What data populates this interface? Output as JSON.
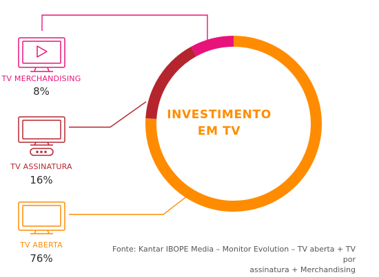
{
  "chart_data": {
    "type": "pie",
    "variant": "donut",
    "center_title": [
      "INVESTIMENTO",
      "EM TV"
    ],
    "slices": [
      {
        "label": "TV ABERTA",
        "value_text": "76%",
        "value": 76,
        "color": "#FF8C00"
      },
      {
        "label": "TV ASSINATURA",
        "value_text": "16%",
        "value": 16,
        "color": "#B5252E"
      },
      {
        "label": "TV MERCHANDISING",
        "value_text": "8%",
        "value": 8,
        "color": "#E8137A"
      }
    ],
    "source": [
      "Fonte: Kantar IBOPE Media – Monitor Evolution – TV aberta + TV por",
      "assinatura + Merchandising"
    ]
  },
  "center_color": "#FF8C00",
  "icons": [
    "tv-play-icon",
    "tv-set-top-box-icon",
    "tv-icon"
  ]
}
